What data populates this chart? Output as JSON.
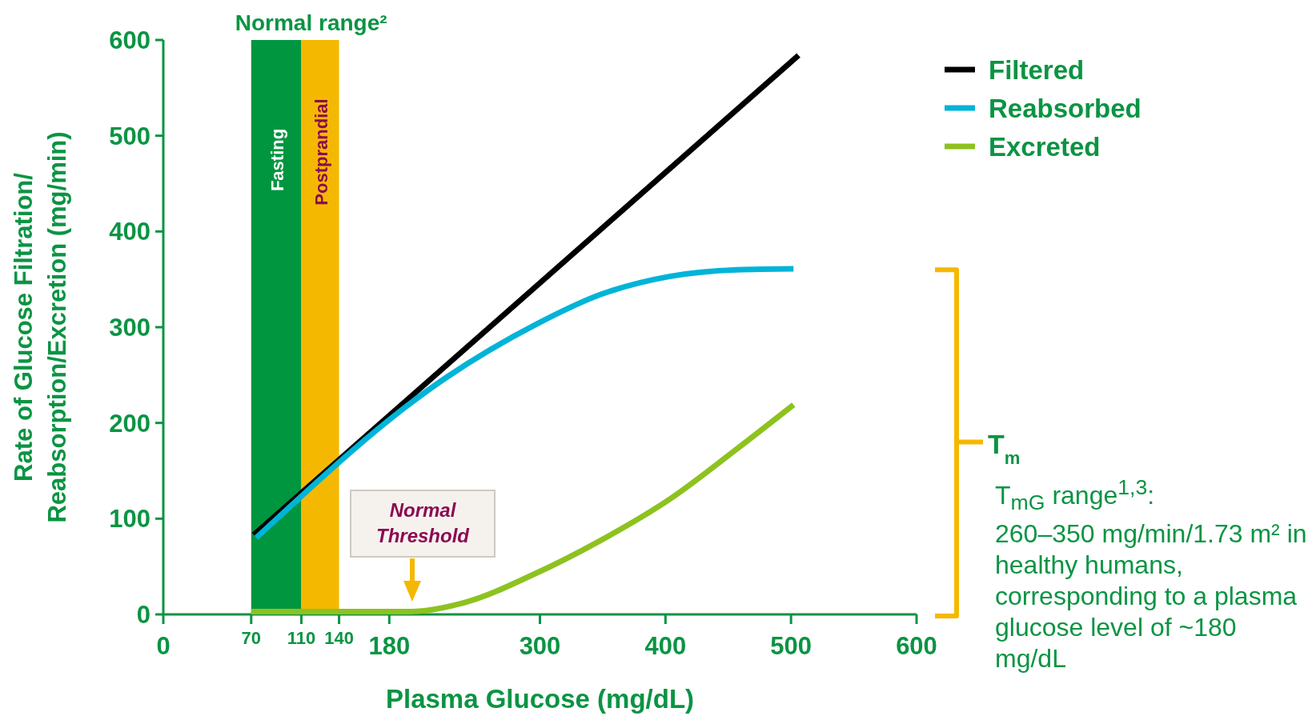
{
  "chart_data": {
    "type": "line",
    "xlabel": "Plasma Glucose (mg/dL)",
    "ylabel": "Rate of Glucose Filtration/\nReabsorption/Excretion (mg/min)",
    "xlim": [
      0,
      600
    ],
    "xticks": [
      0,
      70,
      110,
      140,
      180,
      300,
      400,
      500,
      600
    ],
    "ylim": [
      0,
      600
    ],
    "yticks": [
      0,
      100,
      200,
      300,
      400,
      500,
      600
    ],
    "grid": false,
    "legend": "top right",
    "line_style": "solid",
    "marker": "none",
    "series": [
      {
        "name": "Filtered",
        "color": "#000000",
        "x": [
          72,
          506
        ],
        "values": [
          83,
          584
        ]
      },
      {
        "name": "Reabsorbed",
        "color": "#00b4d8",
        "x": [
          74,
          226,
          297,
          348,
          403,
          457,
          502
        ],
        "values": [
          80,
          248,
          303,
          334,
          353,
          360,
          361
        ]
      },
      {
        "name": "Excreted",
        "color": "#8dc21f",
        "x": [
          70,
          197,
          239,
          297,
          348,
          403,
          457,
          502
        ],
        "values": [
          3,
          3,
          12,
          43,
          77,
          120,
          173,
          219
        ]
      }
    ],
    "bands": [
      {
        "axis": "x",
        "from": 70,
        "to": 110,
        "label": "Fasting",
        "color": "#009640"
      },
      {
        "axis": "x",
        "from": 110,
        "to": 140,
        "label": "Postprandial",
        "color": "#f5b800"
      }
    ],
    "annotations": [
      "Normal range²",
      "Normal Threshold",
      "T$_{m}$",
      "T$_{mG}$ range$^{1,3}$:\n260–350 mg/min/1.73 m² in healthy humans, corresponding to a plasma glucose level of ~180 mg/dL"
    ]
  }
}
